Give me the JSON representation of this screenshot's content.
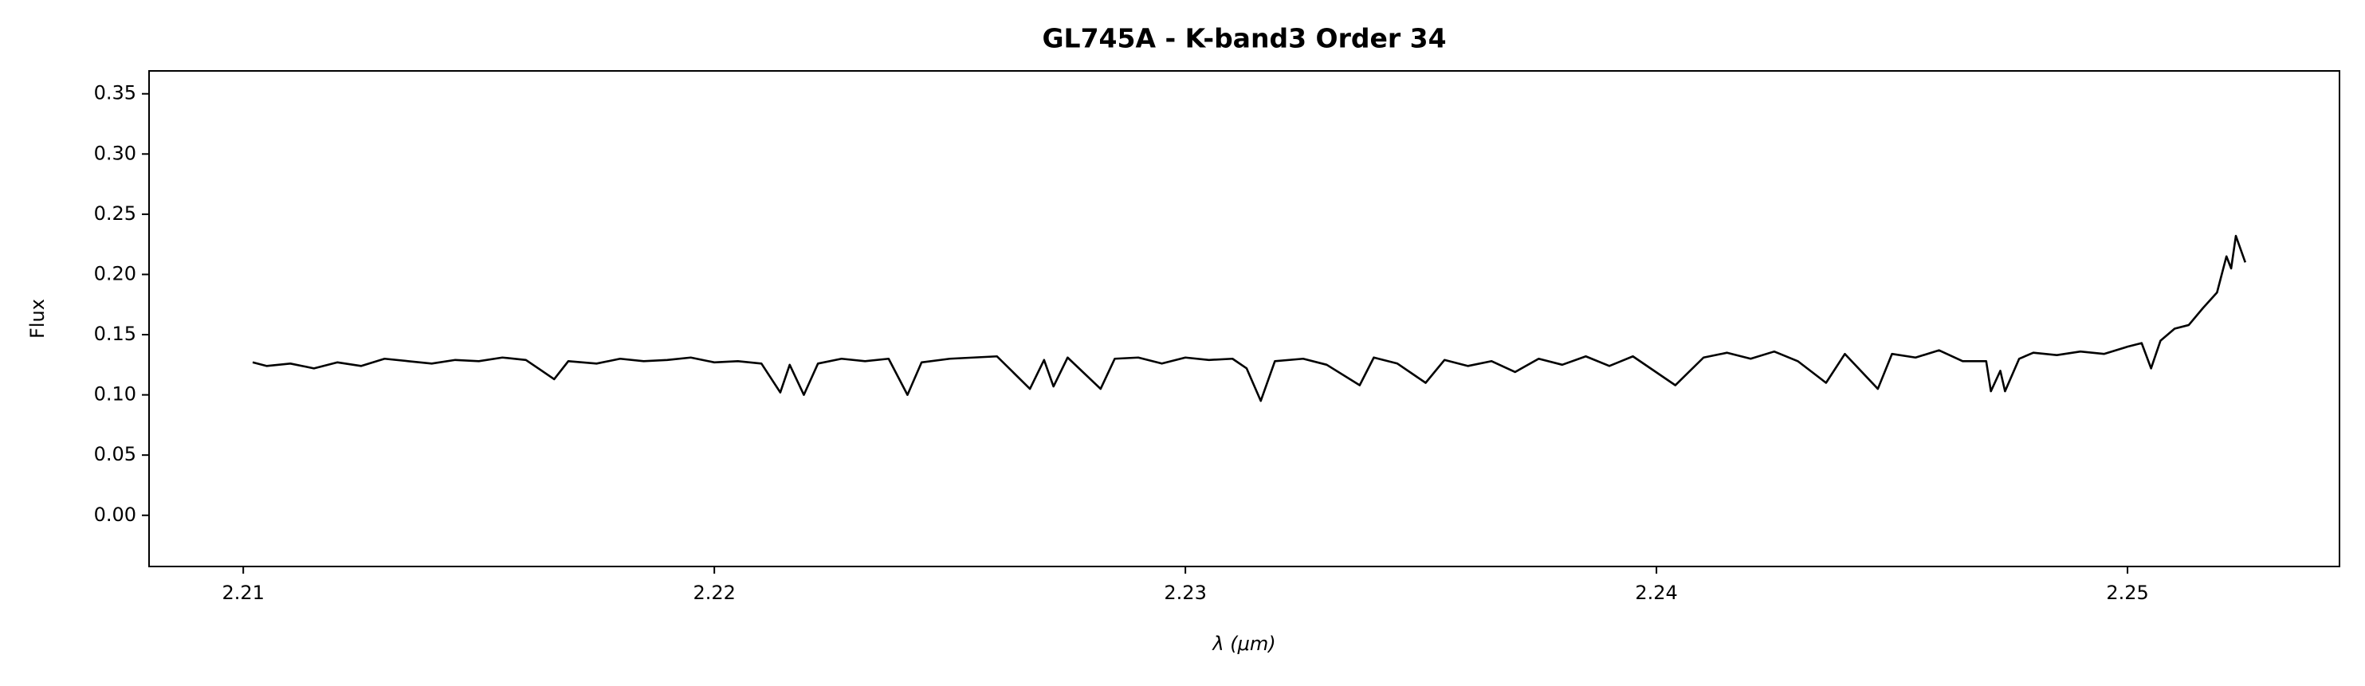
{
  "chart_data": {
    "type": "line",
    "title": "GL745A - K-band3 Order 34",
    "xlabel": "λ (μm)",
    "ylabel": "Flux",
    "xlim": [
      2.208,
      2.2545
    ],
    "ylim": [
      -0.0425,
      0.369
    ],
    "xticks": [
      2.21,
      2.22,
      2.23,
      2.24,
      2.25
    ],
    "yticks": [
      {
        "value": 0,
        "label": "0.00"
      },
      0.05,
      {
        "value": 0.1,
        "label": "0.10"
      },
      0.15,
      {
        "value": 0.2,
        "label": "0.20"
      },
      0.25,
      {
        "value": 0.3,
        "label": "0.30"
      },
      0.35
    ],
    "grid": false,
    "series": [
      {
        "color": "#000000",
        "x": [
          2.2102,
          2.2105,
          2.211,
          2.2115,
          2.212,
          2.2125,
          2.213,
          2.2135,
          2.214,
          2.2145,
          2.215,
          2.2155,
          2.216,
          2.2163,
          2.2166,
          2.2169,
          2.2175,
          2.218,
          2.2185,
          2.219,
          2.2195,
          2.22,
          2.2205,
          2.221,
          2.2214,
          2.2216,
          2.2219,
          2.2222,
          2.2227,
          2.2232,
          2.2237,
          2.2241,
          2.2244,
          2.225,
          2.2255,
          2.226,
          2.2267,
          2.227,
          2.2272,
          2.2275,
          2.2282,
          2.2285,
          2.229,
          2.2295,
          2.23,
          2.2305,
          2.231,
          2.2313,
          2.2316,
          2.2319,
          2.2325,
          2.233,
          2.2337,
          2.234,
          2.2345,
          2.2351,
          2.2355,
          2.236,
          2.2365,
          2.237,
          2.2375,
          2.238,
          2.2385,
          2.239,
          2.2395,
          2.2404,
          2.241,
          2.2415,
          2.242,
          2.2425,
          2.243,
          2.2436,
          2.244,
          2.2447,
          2.245,
          2.2455,
          2.246,
          2.2465,
          2.247,
          2.2471,
          2.2473,
          2.2474,
          2.2477,
          2.248,
          2.2485,
          2.249,
          2.2495,
          2.25,
          2.2503,
          2.2505,
          2.2507,
          2.251,
          2.2513,
          2.2516,
          2.2519,
          2.2521,
          2.2522,
          2.2523,
          2.2525
        ],
        "values": [
          0.127,
          0.124,
          0.126,
          0.122,
          0.127,
          0.124,
          0.13,
          0.128,
          0.126,
          0.129,
          0.128,
          0.131,
          0.129,
          0.121,
          0.113,
          0.128,
          0.126,
          0.13,
          0.128,
          0.129,
          0.131,
          0.127,
          0.128,
          0.126,
          0.102,
          0.125,
          0.1,
          0.126,
          0.13,
          0.128,
          0.13,
          0.1,
          0.127,
          0.13,
          0.131,
          0.132,
          0.105,
          0.129,
          0.107,
          0.131,
          0.105,
          0.13,
          0.131,
          0.126,
          0.131,
          0.129,
          0.13,
          0.122,
          0.095,
          0.128,
          0.13,
          0.125,
          0.108,
          0.131,
          0.126,
          0.11,
          0.129,
          0.124,
          0.128,
          0.119,
          0.13,
          0.125,
          0.132,
          0.124,
          0.132,
          0.108,
          0.131,
          0.135,
          0.13,
          0.136,
          0.128,
          0.11,
          0.134,
          0.105,
          0.134,
          0.131,
          0.137,
          0.128,
          0.128,
          0.103,
          0.12,
          0.103,
          0.13,
          0.135,
          0.133,
          0.136,
          0.134,
          0.14,
          0.143,
          0.122,
          0.145,
          0.155,
          0.158,
          0.172,
          0.185,
          0.215,
          0.205,
          0.232,
          0.21
        ]
      }
    ]
  }
}
